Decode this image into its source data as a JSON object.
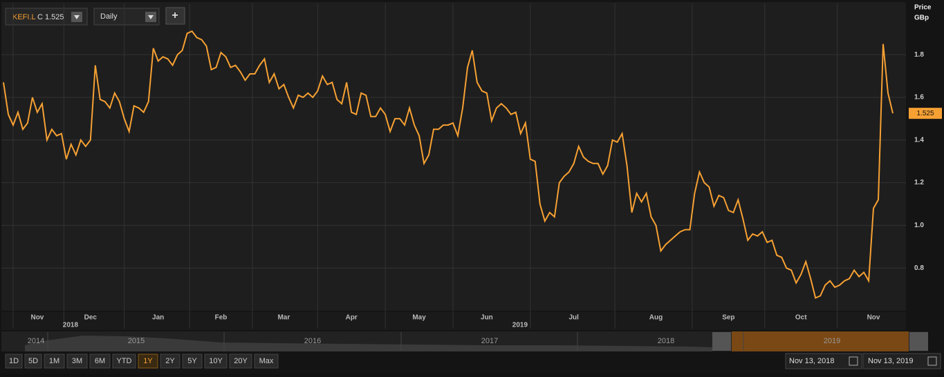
{
  "toolbar": {
    "symbol": "KEFI.L",
    "quote": "C 1.525",
    "interval": "Daily",
    "add": "+"
  },
  "chart_data": {
    "type": "line",
    "y_axis_title": "Price",
    "y_axis_unit": "GBp",
    "last_value_label": "1.525",
    "categories": [
      null,
      null,
      null,
      null,
      null,
      null,
      null,
      "Nov",
      null,
      null,
      null,
      null,
      null,
      null,
      null,
      null,
      null,
      null,
      "Dec",
      null,
      null,
      null,
      null,
      null,
      null,
      null,
      null,
      null,
      null,
      null,
      null,
      null,
      "Jan",
      null,
      null,
      null,
      null,
      null,
      null,
      null,
      null,
      null,
      null,
      null,
      null,
      "Feb",
      null,
      null,
      null,
      null,
      null,
      null,
      null,
      null,
      null,
      null,
      null,
      null,
      "Mar",
      null,
      null,
      null,
      null,
      null,
      null,
      null,
      null,
      null,
      null,
      null,
      null,
      null,
      "Apr",
      null,
      null,
      null,
      null,
      null,
      null,
      null,
      null,
      null,
      null,
      null,
      null,
      null,
      "May",
      null,
      null,
      null,
      null,
      null,
      null,
      null,
      null,
      null,
      null,
      null,
      null,
      null,
      "Jun",
      null,
      null,
      null,
      null,
      null,
      null,
      null,
      null,
      null,
      null,
      null,
      null,
      null,
      null,
      null,
      null,
      null,
      "Jul",
      null,
      null,
      null,
      null,
      null,
      null,
      null,
      null,
      null,
      null,
      null,
      null,
      null,
      null,
      null,
      null,
      "Aug",
      null,
      null,
      null,
      null,
      null,
      null,
      null,
      null,
      null,
      null,
      null,
      null,
      null,
      null,
      "Sep",
      null,
      null,
      null,
      null,
      null,
      null,
      null,
      null,
      null,
      null,
      null,
      null,
      null,
      null,
      "Oct",
      null,
      null,
      null,
      null,
      null,
      null,
      null,
      null,
      null,
      null,
      null,
      null,
      null,
      null,
      "Nov",
      null,
      null,
      null,
      null
    ],
    "year_labels": [
      "2018",
      "2019"
    ],
    "series": [
      {
        "name": "KEFI.L",
        "color": "#f7a133",
        "values": [
          1.67,
          1.52,
          1.47,
          1.53,
          1.45,
          1.48,
          1.6,
          1.53,
          1.57,
          1.4,
          1.45,
          1.42,
          1.43,
          1.31,
          1.38,
          1.33,
          1.4,
          1.37,
          1.4,
          1.75,
          1.59,
          1.58,
          1.55,
          1.62,
          1.58,
          1.5,
          1.44,
          1.56,
          1.55,
          1.53,
          1.58,
          1.83,
          1.77,
          1.79,
          1.78,
          1.75,
          1.8,
          1.82,
          1.9,
          1.91,
          1.88,
          1.87,
          1.84,
          1.73,
          1.74,
          1.81,
          1.79,
          1.74,
          1.75,
          1.72,
          1.68,
          1.71,
          1.71,
          1.75,
          1.78,
          1.67,
          1.71,
          1.64,
          1.66,
          1.6,
          1.55,
          1.61,
          1.6,
          1.62,
          1.6,
          1.63,
          1.7,
          1.66,
          1.67,
          1.59,
          1.57,
          1.67,
          1.53,
          1.52,
          1.62,
          1.61,
          1.51,
          1.51,
          1.55,
          1.52,
          1.44,
          1.5,
          1.5,
          1.47,
          1.55,
          1.47,
          1.42,
          1.29,
          1.33,
          1.45,
          1.45,
          1.47,
          1.47,
          1.48,
          1.42,
          1.55,
          1.74,
          1.82,
          1.67,
          1.63,
          1.62,
          1.49,
          1.55,
          1.57,
          1.55,
          1.52,
          1.53,
          1.43,
          1.48,
          1.31,
          1.3,
          1.1,
          1.02,
          1.06,
          1.04,
          1.2,
          1.23,
          1.25,
          1.29,
          1.37,
          1.32,
          1.3,
          1.29,
          1.29,
          1.24,
          1.28,
          1.4,
          1.39,
          1.43,
          1.28,
          1.06,
          1.15,
          1.11,
          1.15,
          1.04,
          1.0,
          0.88,
          0.91,
          0.93,
          0.95,
          0.97,
          0.98,
          0.98,
          1.15,
          1.25,
          1.2,
          1.18,
          1.09,
          1.14,
          1.13,
          1.07,
          1.06,
          1.12,
          1.03,
          0.93,
          0.96,
          0.95,
          0.97,
          0.92,
          0.93,
          0.86,
          0.85,
          0.8,
          0.79,
          0.73,
          0.77,
          0.83,
          0.75,
          0.66,
          0.67,
          0.72,
          0.74,
          0.71,
          0.72,
          0.74,
          0.75,
          0.79,
          0.76,
          0.78,
          0.74,
          1.08,
          1.12,
          1.85,
          1.62,
          1.525
        ]
      }
    ],
    "ylim": [
      0.6,
      2.04
    ],
    "yticks": [
      {
        "value": 0.8,
        "label": "0.8"
      },
      {
        "value": 1.0,
        "label": "1.0"
      },
      {
        "value": 1.2,
        "label": "1.2"
      },
      {
        "value": 1.4,
        "label": "1.4"
      },
      {
        "value": 1.6,
        "label": "1.6"
      },
      {
        "value": 1.8,
        "label": "1.8"
      }
    ],
    "grid": true
  },
  "navigator": {
    "years": [
      "2014",
      "2015",
      "2016",
      "2017",
      "2018",
      "2019"
    ]
  },
  "range_buttons": [
    "1D",
    "5D",
    "1M",
    "3M",
    "6M",
    "YTD",
    "1Y",
    "2Y",
    "5Y",
    "10Y",
    "20Y",
    "Max"
  ],
  "active_range": 6,
  "date_range": {
    "start": "Nov 13, 2018",
    "end": "Nov 13, 2019"
  }
}
